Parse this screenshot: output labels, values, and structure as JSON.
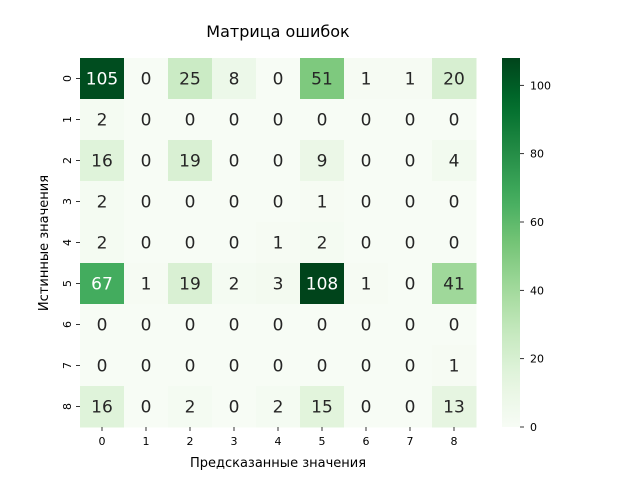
{
  "chart_data": {
    "type": "heatmap",
    "title": "Матрица ошибок",
    "xlabel": "Предсказанные значения",
    "ylabel": "Истинные значения",
    "x_categories": [
      "0",
      "1",
      "2",
      "3",
      "4",
      "5",
      "6",
      "7",
      "8"
    ],
    "y_categories": [
      "0",
      "1",
      "2",
      "3",
      "4",
      "5",
      "6",
      "7",
      "8"
    ],
    "values": [
      [
        105,
        0,
        25,
        8,
        0,
        51,
        1,
        1,
        20
      ],
      [
        2,
        0,
        0,
        0,
        0,
        0,
        0,
        0,
        0
      ],
      [
        16,
        0,
        19,
        0,
        0,
        9,
        0,
        0,
        4
      ],
      [
        2,
        0,
        0,
        0,
        0,
        1,
        0,
        0,
        0
      ],
      [
        2,
        0,
        0,
        0,
        1,
        2,
        0,
        0,
        0
      ],
      [
        67,
        1,
        19,
        2,
        3,
        108,
        1,
        0,
        41
      ],
      [
        0,
        0,
        0,
        0,
        0,
        0,
        0,
        0,
        0
      ],
      [
        0,
        0,
        0,
        0,
        0,
        0,
        0,
        0,
        1
      ],
      [
        16,
        0,
        2,
        0,
        2,
        15,
        0,
        0,
        13
      ]
    ],
    "colorbar": {
      "range": [
        0,
        108
      ],
      "ticks": [
        "0",
        "20",
        "40",
        "60",
        "80",
        "100"
      ],
      "colormap": "Greens"
    },
    "annotated": true,
    "grid": false
  }
}
